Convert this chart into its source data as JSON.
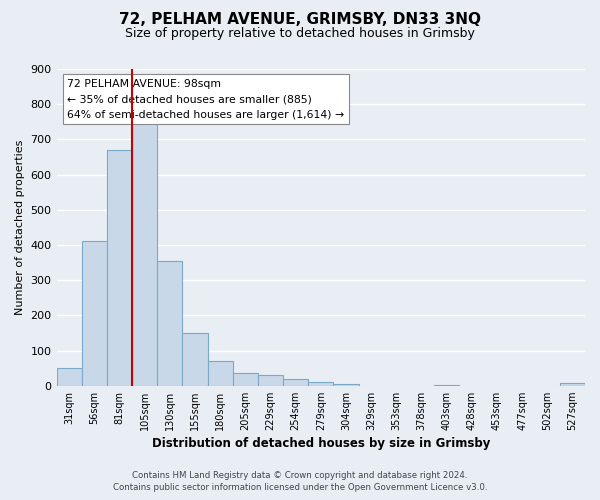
{
  "title": "72, PELHAM AVENUE, GRIMSBY, DN33 3NQ",
  "subtitle": "Size of property relative to detached houses in Grimsby",
  "xlabel": "Distribution of detached houses by size in Grimsby",
  "ylabel": "Number of detached properties",
  "bar_labels": [
    "31sqm",
    "56sqm",
    "81sqm",
    "105sqm",
    "130sqm",
    "155sqm",
    "180sqm",
    "205sqm",
    "229sqm",
    "254sqm",
    "279sqm",
    "304sqm",
    "329sqm",
    "353sqm",
    "378sqm",
    "403sqm",
    "428sqm",
    "453sqm",
    "477sqm",
    "502sqm",
    "527sqm"
  ],
  "bar_values": [
    50,
    410,
    670,
    750,
    355,
    150,
    70,
    37,
    30,
    18,
    10,
    5,
    0,
    0,
    0,
    3,
    0,
    0,
    0,
    0,
    7
  ],
  "bar_color": "#c8d8e8",
  "bar_edge_color": "#7aaac8",
  "vline_color": "#cc0000",
  "vline_pos": 2.5,
  "ylim": [
    0,
    900
  ],
  "yticks": [
    0,
    100,
    200,
    300,
    400,
    500,
    600,
    700,
    800,
    900
  ],
  "annotation_lines": [
    "72 PELHAM AVENUE: 98sqm",
    "← 35% of detached houses are smaller (885)",
    "64% of semi-detached houses are larger (1,614) →"
  ],
  "footer_line1": "Contains HM Land Registry data © Crown copyright and database right 2024.",
  "footer_line2": "Contains public sector information licensed under the Open Government Licence v3.0.",
  "background_color": "#e8eef4",
  "grid_color": "#ffffff"
}
